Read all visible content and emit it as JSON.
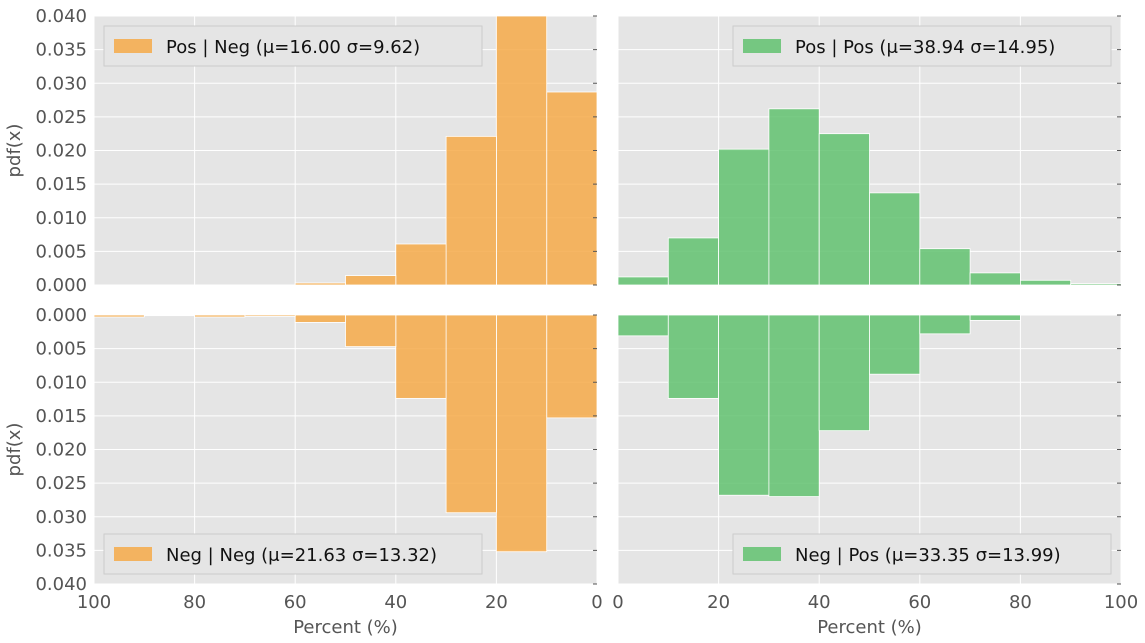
{
  "chart_data": [
    {
      "id": "pos-neg",
      "type": "bar",
      "legend": "Pos | Neg (μ=16.00 σ=9.62)",
      "color": "#f5a742",
      "x_direction": "reversed",
      "y_direction": "up",
      "ylim": [
        0,
        0.04
      ],
      "xlim": [
        0,
        100
      ],
      "ylabel": "pdf(x)",
      "bins": [
        [
          0,
          10,
          0.0287
        ],
        [
          10,
          20,
          0.04
        ],
        [
          20,
          30,
          0.0221
        ],
        [
          30,
          40,
          0.0061
        ],
        [
          40,
          50,
          0.0014
        ],
        [
          50,
          60,
          0.0003
        ],
        [
          60,
          70,
          0
        ],
        [
          70,
          80,
          0
        ],
        [
          80,
          90,
          0
        ],
        [
          90,
          100,
          0
        ]
      ],
      "legend_position": "top-left"
    },
    {
      "id": "pos-pos",
      "type": "bar",
      "legend": "Pos | Pos (μ=38.94 σ=14.95)",
      "color": "#5cbf6a",
      "x_direction": "normal",
      "y_direction": "up",
      "ylim": [
        0,
        0.04
      ],
      "xlim": [
        0,
        100
      ],
      "bins": [
        [
          0,
          10,
          0.0012
        ],
        [
          10,
          20,
          0.007
        ],
        [
          20,
          30,
          0.0202
        ],
        [
          30,
          40,
          0.0262
        ],
        [
          40,
          50,
          0.0225
        ],
        [
          50,
          60,
          0.0137
        ],
        [
          60,
          70,
          0.0054
        ],
        [
          70,
          80,
          0.0018
        ],
        [
          80,
          90,
          0.0007
        ],
        [
          90,
          100,
          0.0002
        ]
      ],
      "legend_position": "top-right"
    },
    {
      "id": "neg-neg",
      "type": "bar",
      "legend": "Neg | Neg (μ=21.63 σ=13.32)",
      "color": "#f5a742",
      "x_direction": "reversed",
      "y_direction": "down",
      "ylim": [
        0,
        0.04
      ],
      "xlim": [
        0,
        100
      ],
      "ylabel": "pdf(x)",
      "xlabel": "Percent (%)",
      "bins": [
        [
          0,
          10,
          0.0153
        ],
        [
          10,
          20,
          0.0352
        ],
        [
          20,
          30,
          0.0294
        ],
        [
          30,
          40,
          0.0124
        ],
        [
          40,
          50,
          0.0047
        ],
        [
          50,
          60,
          0.0011
        ],
        [
          60,
          70,
          0.0002
        ],
        [
          70,
          80,
          0.0003
        ],
        [
          80,
          90,
          0.0001
        ],
        [
          90,
          100,
          0.0003
        ]
      ],
      "legend_position": "bottom-left"
    },
    {
      "id": "neg-pos",
      "type": "bar",
      "legend": "Neg | Pos (μ=33.35 σ=13.99)",
      "color": "#5cbf6a",
      "x_direction": "normal",
      "y_direction": "down",
      "ylim": [
        0,
        0.04
      ],
      "xlim": [
        0,
        100
      ],
      "xlabel": "Percent (%)",
      "bins": [
        [
          0,
          10,
          0.0031
        ],
        [
          10,
          20,
          0.0124
        ],
        [
          20,
          30,
          0.0268
        ],
        [
          30,
          40,
          0.027
        ],
        [
          40,
          50,
          0.0172
        ],
        [
          50,
          60,
          0.0088
        ],
        [
          60,
          70,
          0.0028
        ],
        [
          70,
          80,
          0.0008
        ],
        [
          80,
          90,
          0
        ],
        [
          90,
          100,
          0
        ]
      ],
      "legend_position": "bottom-right"
    }
  ],
  "axes": {
    "y_ticks": [
      "0.000",
      "0.005",
      "0.010",
      "0.015",
      "0.020",
      "0.025",
      "0.030",
      "0.035",
      "0.040"
    ],
    "x_ticks_left": [
      "100",
      "80",
      "60",
      "40",
      "20",
      "0"
    ],
    "x_ticks_right": [
      "0",
      "20",
      "40",
      "60",
      "80",
      "100"
    ],
    "grid": true,
    "background": "#e5e5e5"
  }
}
